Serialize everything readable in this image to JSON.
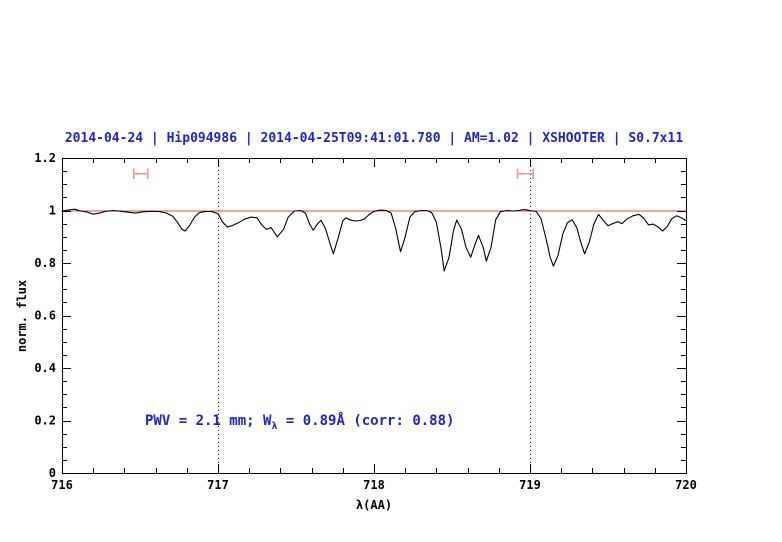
{
  "colors": {
    "title_blue": "#2222cc",
    "annotation_blue": "#2222cc",
    "continuum_red": "#e04848",
    "marker_red": "#f09694",
    "axis_black": "#000000",
    "gridline_gray": "#333333"
  },
  "chart_data": {
    "type": "line",
    "title": "2014-04-24 | Hip094986 | 2014-04-25T09:41:01.780 | AM=1.02 | XSHOOTER | S0.7x11",
    "xlabel": "λ(AA)",
    "ylabel": "norm. flux",
    "xlim": [
      716,
      720
    ],
    "ylim": [
      0,
      1.2
    ],
    "x_major_ticks": [
      716,
      717,
      718,
      719,
      720
    ],
    "x_tick_labels": [
      "716",
      "717",
      "718",
      "719",
      "720"
    ],
    "x_minor_step": 0.2,
    "y_major_ticks": [
      0,
      0.2,
      0.4,
      0.6,
      0.8,
      1,
      1.2
    ],
    "y_tick_labels": [
      "0",
      "0.2",
      "0.4",
      "0.6",
      "0.8",
      "1",
      "1.2"
    ],
    "y_minor_step": 0.05,
    "dotted_vlines": [
      717,
      719
    ],
    "continuum_y": 1.0,
    "legend": "none",
    "grid": "off",
    "annotation": {
      "pre": "PWV = 2.1 mm; W",
      "sub": "λ",
      "post": " = 0.89Å (corr: 0.88)",
      "x_data": 716.53,
      "y_data": 0.2
    },
    "pwv_markers": [
      {
        "x_start": 716.46,
        "x_end": 716.55,
        "y": 1.14,
        "cap_half": 0.02
      },
      {
        "x_start": 718.92,
        "x_end": 719.02,
        "y": 1.14,
        "cap_half": 0.02
      }
    ],
    "series": [
      {
        "name": "spectrum",
        "color": "#000000",
        "points": [
          [
            716.0,
            0.998
          ],
          [
            716.04,
            1.002
          ],
          [
            716.08,
            1.005
          ],
          [
            716.12,
            0.998
          ],
          [
            716.16,
            0.994
          ],
          [
            716.2,
            0.986
          ],
          [
            716.24,
            0.99
          ],
          [
            716.28,
            0.997
          ],
          [
            716.33,
            1.0
          ],
          [
            716.38,
            0.997
          ],
          [
            716.43,
            0.993
          ],
          [
            716.47,
            0.99
          ],
          [
            716.52,
            0.995
          ],
          [
            716.57,
            0.997
          ],
          [
            716.62,
            0.996
          ],
          [
            716.67,
            0.99
          ],
          [
            716.71,
            0.978
          ],
          [
            716.74,
            0.955
          ],
          [
            716.77,
            0.928
          ],
          [
            716.79,
            0.922
          ],
          [
            716.82,
            0.945
          ],
          [
            716.85,
            0.975
          ],
          [
            716.88,
            0.992
          ],
          [
            716.92,
            0.996
          ],
          [
            716.96,
            0.996
          ],
          [
            717.0,
            0.988
          ],
          [
            717.03,
            0.955
          ],
          [
            717.06,
            0.937
          ],
          [
            717.09,
            0.942
          ],
          [
            717.13,
            0.953
          ],
          [
            717.17,
            0.967
          ],
          [
            717.21,
            0.975
          ],
          [
            717.25,
            0.972
          ],
          [
            717.28,
            0.945
          ],
          [
            717.31,
            0.928
          ],
          [
            717.34,
            0.935
          ],
          [
            717.38,
            0.9
          ],
          [
            717.42,
            0.928
          ],
          [
            717.45,
            0.975
          ],
          [
            717.49,
            0.998
          ],
          [
            717.53,
            1.0
          ],
          [
            717.56,
            0.99
          ],
          [
            717.59,
            0.945
          ],
          [
            717.61,
            0.925
          ],
          [
            717.64,
            0.95
          ],
          [
            717.66,
            0.963
          ],
          [
            717.69,
            0.93
          ],
          [
            717.72,
            0.87
          ],
          [
            717.74,
            0.835
          ],
          [
            717.77,
            0.895
          ],
          [
            717.8,
            0.96
          ],
          [
            717.82,
            0.972
          ],
          [
            717.85,
            0.963
          ],
          [
            717.88,
            0.96
          ],
          [
            717.91,
            0.962
          ],
          [
            717.94,
            0.968
          ],
          [
            717.97,
            0.985
          ],
          [
            718.0,
            0.997
          ],
          [
            718.04,
            1.002
          ],
          [
            718.08,
            1.0
          ],
          [
            718.11,
            0.99
          ],
          [
            718.14,
            0.93
          ],
          [
            718.17,
            0.843
          ],
          [
            718.2,
            0.9
          ],
          [
            718.23,
            0.975
          ],
          [
            718.26,
            0.995
          ],
          [
            718.3,
            1.0
          ],
          [
            718.34,
            1.0
          ],
          [
            718.37,
            0.992
          ],
          [
            718.4,
            0.955
          ],
          [
            718.43,
            0.855
          ],
          [
            718.45,
            0.77
          ],
          [
            718.48,
            0.82
          ],
          [
            718.51,
            0.925
          ],
          [
            718.53,
            0.963
          ],
          [
            718.56,
            0.93
          ],
          [
            718.59,
            0.86
          ],
          [
            718.62,
            0.822
          ],
          [
            718.65,
            0.875
          ],
          [
            718.67,
            0.905
          ],
          [
            718.7,
            0.86
          ],
          [
            718.72,
            0.807
          ],
          [
            718.75,
            0.86
          ],
          [
            718.78,
            0.965
          ],
          [
            718.81,
            0.995
          ],
          [
            718.85,
            1.0
          ],
          [
            718.89,
            0.998
          ],
          [
            718.93,
            1.0
          ],
          [
            718.96,
            1.004
          ],
          [
            719.0,
            1.0
          ],
          [
            719.04,
            0.996
          ],
          [
            719.07,
            0.97
          ],
          [
            719.1,
            0.9
          ],
          [
            719.13,
            0.82
          ],
          [
            719.15,
            0.788
          ],
          [
            719.18,
            0.83
          ],
          [
            719.21,
            0.91
          ],
          [
            719.24,
            0.953
          ],
          [
            719.27,
            0.965
          ],
          [
            719.3,
            0.935
          ],
          [
            719.33,
            0.87
          ],
          [
            719.35,
            0.835
          ],
          [
            719.38,
            0.88
          ],
          [
            719.41,
            0.95
          ],
          [
            719.44,
            0.985
          ],
          [
            719.47,
            0.962
          ],
          [
            719.5,
            0.942
          ],
          [
            719.53,
            0.95
          ],
          [
            719.56,
            0.957
          ],
          [
            719.59,
            0.95
          ],
          [
            719.62,
            0.967
          ],
          [
            719.66,
            0.98
          ],
          [
            719.7,
            0.985
          ],
          [
            719.73,
            0.97
          ],
          [
            719.76,
            0.945
          ],
          [
            719.79,
            0.948
          ],
          [
            719.82,
            0.938
          ],
          [
            719.85,
            0.922
          ],
          [
            719.88,
            0.94
          ],
          [
            719.91,
            0.97
          ],
          [
            719.94,
            0.98
          ],
          [
            719.97,
            0.972
          ],
          [
            720.0,
            0.962
          ]
        ]
      }
    ]
  }
}
